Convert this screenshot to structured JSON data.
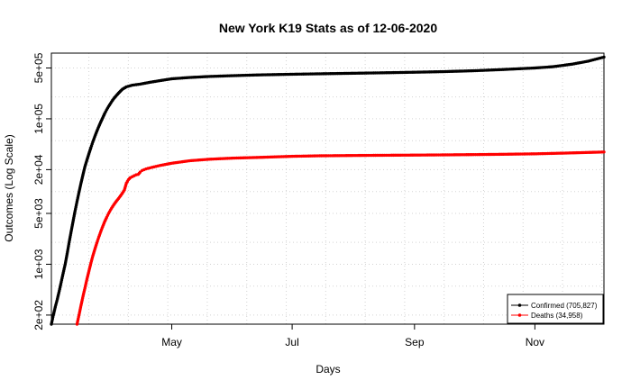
{
  "chart_data": {
    "type": "line",
    "title": "New York K19 Stats as of 12-06-2020",
    "xlabel": "Days",
    "ylabel": "Outcomes (Log Scale)",
    "x_axis": {
      "scale": "date",
      "range": [
        "2020-03-01",
        "2020-12-06"
      ],
      "ticks": [
        {
          "date": "2020-05-01",
          "label": "May"
        },
        {
          "date": "2020-07-01",
          "label": "Jul"
        },
        {
          "date": "2020-09-01",
          "label": "Sep"
        },
        {
          "date": "2020-11-01",
          "label": "Nov"
        }
      ],
      "grid_dates": [
        "2020-03-20",
        "2020-04-09",
        "2020-04-29",
        "2020-05-19",
        "2020-06-08",
        "2020-06-28",
        "2020-07-18",
        "2020-08-07",
        "2020-08-27",
        "2020-09-16",
        "2020-10-06",
        "2020-10-26",
        "2020-11-15",
        "2020-12-05"
      ]
    },
    "y_axis": {
      "scale": "log10",
      "range": [
        150,
        800000
      ],
      "ticks": [
        {
          "value": 200,
          "label": "2e+02"
        },
        {
          "value": 1000,
          "label": "1e+03"
        },
        {
          "value": 5000,
          "label": "5e+03"
        },
        {
          "value": 20000,
          "label": "2e+04"
        },
        {
          "value": 100000,
          "label": "1e+05"
        },
        {
          "value": 500000,
          "label": "5e+05"
        }
      ],
      "grid_values": [
        200,
        500,
        1000,
        2000,
        5000,
        10000,
        20000,
        50000,
        100000,
        200000,
        500000
      ]
    },
    "grid": true,
    "legend_position": "bottom-right",
    "series": [
      {
        "name": "Confirmed (705,827)",
        "color": "#000000",
        "points": [
          [
            "2020-03-01",
            150
          ],
          [
            "2020-03-02",
            200
          ],
          [
            "2020-03-03",
            260
          ],
          [
            "2020-03-04",
            330
          ],
          [
            "2020-03-05",
            430
          ],
          [
            "2020-03-06",
            570
          ],
          [
            "2020-03-07",
            760
          ],
          [
            "2020-03-08",
            1000
          ],
          [
            "2020-03-09",
            1400
          ],
          [
            "2020-03-10",
            2000
          ],
          [
            "2020-03-11",
            2800
          ],
          [
            "2020-03-12",
            3900
          ],
          [
            "2020-03-13",
            5400
          ],
          [
            "2020-03-14",
            7300
          ],
          [
            "2020-03-15",
            9800
          ],
          [
            "2020-03-16",
            13000
          ],
          [
            "2020-03-17",
            17000
          ],
          [
            "2020-03-18",
            22000
          ],
          [
            "2020-03-19",
            27000
          ],
          [
            "2020-03-20",
            33000
          ],
          [
            "2020-03-21",
            40000
          ],
          [
            "2020-03-22",
            48000
          ],
          [
            "2020-03-23",
            57000
          ],
          [
            "2020-03-24",
            67000
          ],
          [
            "2020-03-25",
            78000
          ],
          [
            "2020-03-26",
            90000
          ],
          [
            "2020-03-27",
            103000
          ],
          [
            "2020-03-28",
            118000
          ],
          [
            "2020-03-29",
            133000
          ],
          [
            "2020-03-30",
            148000
          ],
          [
            "2020-03-31",
            163000
          ],
          [
            "2020-04-01",
            180000
          ],
          [
            "2020-04-02",
            195000
          ],
          [
            "2020-04-03",
            210000
          ],
          [
            "2020-04-04",
            225000
          ],
          [
            "2020-04-05",
            240000
          ],
          [
            "2020-04-06",
            255000
          ],
          [
            "2020-04-08",
            275000
          ],
          [
            "2020-04-11",
            290000
          ],
          [
            "2020-04-15",
            300000
          ],
          [
            "2020-04-20",
            318000
          ],
          [
            "2020-04-25",
            335000
          ],
          [
            "2020-05-01",
            355000
          ],
          [
            "2020-05-10",
            370000
          ],
          [
            "2020-05-20",
            382000
          ],
          [
            "2020-06-01",
            392000
          ],
          [
            "2020-06-15",
            402000
          ],
          [
            "2020-07-01",
            410000
          ],
          [
            "2020-07-15",
            416000
          ],
          [
            "2020-08-01",
            423000
          ],
          [
            "2020-08-15",
            429000
          ],
          [
            "2020-09-01",
            437000
          ],
          [
            "2020-09-15",
            445000
          ],
          [
            "2020-10-01",
            458000
          ],
          [
            "2020-10-15",
            475000
          ],
          [
            "2020-11-01",
            500000
          ],
          [
            "2020-11-10",
            520000
          ],
          [
            "2020-11-20",
            565000
          ],
          [
            "2020-11-28",
            620000
          ],
          [
            "2020-12-06",
            705827
          ]
        ]
      },
      {
        "name": "Deaths (34,958)",
        "color": "#ff0000",
        "points": [
          [
            "2020-03-14",
            150
          ],
          [
            "2020-03-15",
            200
          ],
          [
            "2020-03-16",
            270
          ],
          [
            "2020-03-17",
            360
          ],
          [
            "2020-03-18",
            470
          ],
          [
            "2020-03-19",
            620
          ],
          [
            "2020-03-20",
            800
          ],
          [
            "2020-03-21",
            1030
          ],
          [
            "2020-03-22",
            1300
          ],
          [
            "2020-03-23",
            1600
          ],
          [
            "2020-03-24",
            1950
          ],
          [
            "2020-03-25",
            2350
          ],
          [
            "2020-03-26",
            2800
          ],
          [
            "2020-03-27",
            3300
          ],
          [
            "2020-03-28",
            3850
          ],
          [
            "2020-03-29",
            4400
          ],
          [
            "2020-03-30",
            5000
          ],
          [
            "2020-03-31",
            5600
          ],
          [
            "2020-04-01",
            6200
          ],
          [
            "2020-04-02",
            6800
          ],
          [
            "2020-04-03",
            7400
          ],
          [
            "2020-04-04",
            8000
          ],
          [
            "2020-04-05",
            8700
          ],
          [
            "2020-04-06",
            9500
          ],
          [
            "2020-04-07",
            10500
          ],
          [
            "2020-04-08",
            13000
          ],
          [
            "2020-04-09",
            14500
          ],
          [
            "2020-04-10",
            15500
          ],
          [
            "2020-04-11",
            16000
          ],
          [
            "2020-04-12",
            16500
          ],
          [
            "2020-04-13",
            17000
          ],
          [
            "2020-04-14",
            17200
          ],
          [
            "2020-04-15",
            18500
          ],
          [
            "2020-04-16",
            19500
          ],
          [
            "2020-04-18",
            20500
          ],
          [
            "2020-04-21",
            21500
          ],
          [
            "2020-04-25",
            22800
          ],
          [
            "2020-05-01",
            24500
          ],
          [
            "2020-05-10",
            26500
          ],
          [
            "2020-05-20",
            27800
          ],
          [
            "2020-06-01",
            28800
          ],
          [
            "2020-06-15",
            29500
          ],
          [
            "2020-07-01",
            30500
          ],
          [
            "2020-07-15",
            31000
          ],
          [
            "2020-08-01",
            31300
          ],
          [
            "2020-08-15",
            31500
          ],
          [
            "2020-09-01",
            31700
          ],
          [
            "2020-09-15",
            31900
          ],
          [
            "2020-10-01",
            32200
          ],
          [
            "2020-10-15",
            32500
          ],
          [
            "2020-11-01",
            33000
          ],
          [
            "2020-11-15",
            33700
          ],
          [
            "2020-11-25",
            34300
          ],
          [
            "2020-12-06",
            34958
          ]
        ]
      }
    ]
  }
}
